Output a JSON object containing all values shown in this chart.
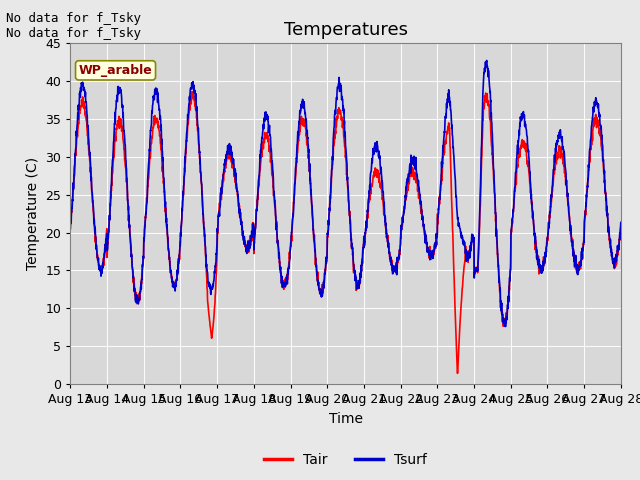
{
  "title": "Temperatures",
  "xlabel": "Time",
  "ylabel": "Temperature (C)",
  "ylim": [
    0,
    45
  ],
  "yticks": [
    0,
    5,
    10,
    15,
    20,
    25,
    30,
    35,
    40,
    45
  ],
  "x_tick_labels": [
    "Aug 13",
    "Aug 14",
    "Aug 15",
    "Aug 16",
    "Aug 17",
    "Aug 18",
    "Aug 19",
    "Aug 20",
    "Aug 21",
    "Aug 22",
    "Aug 23",
    "Aug 24",
    "Aug 25",
    "Aug 26",
    "Aug 27",
    "Aug 28"
  ],
  "legend_labels": [
    "Tair",
    "Tsurf"
  ],
  "color_tair": "#FF0000",
  "color_tsurf": "#0000CC",
  "annotation_text": "No data for f_Tsky\nNo data for f_Tsky",
  "wp_arable_label": "WP_arable",
  "bg_color": "#E8E8E8",
  "plot_bg_color": "#D8D8D8",
  "title_fontsize": 13,
  "label_fontsize": 10,
  "tick_fontsize": 9,
  "lw": 1.2
}
